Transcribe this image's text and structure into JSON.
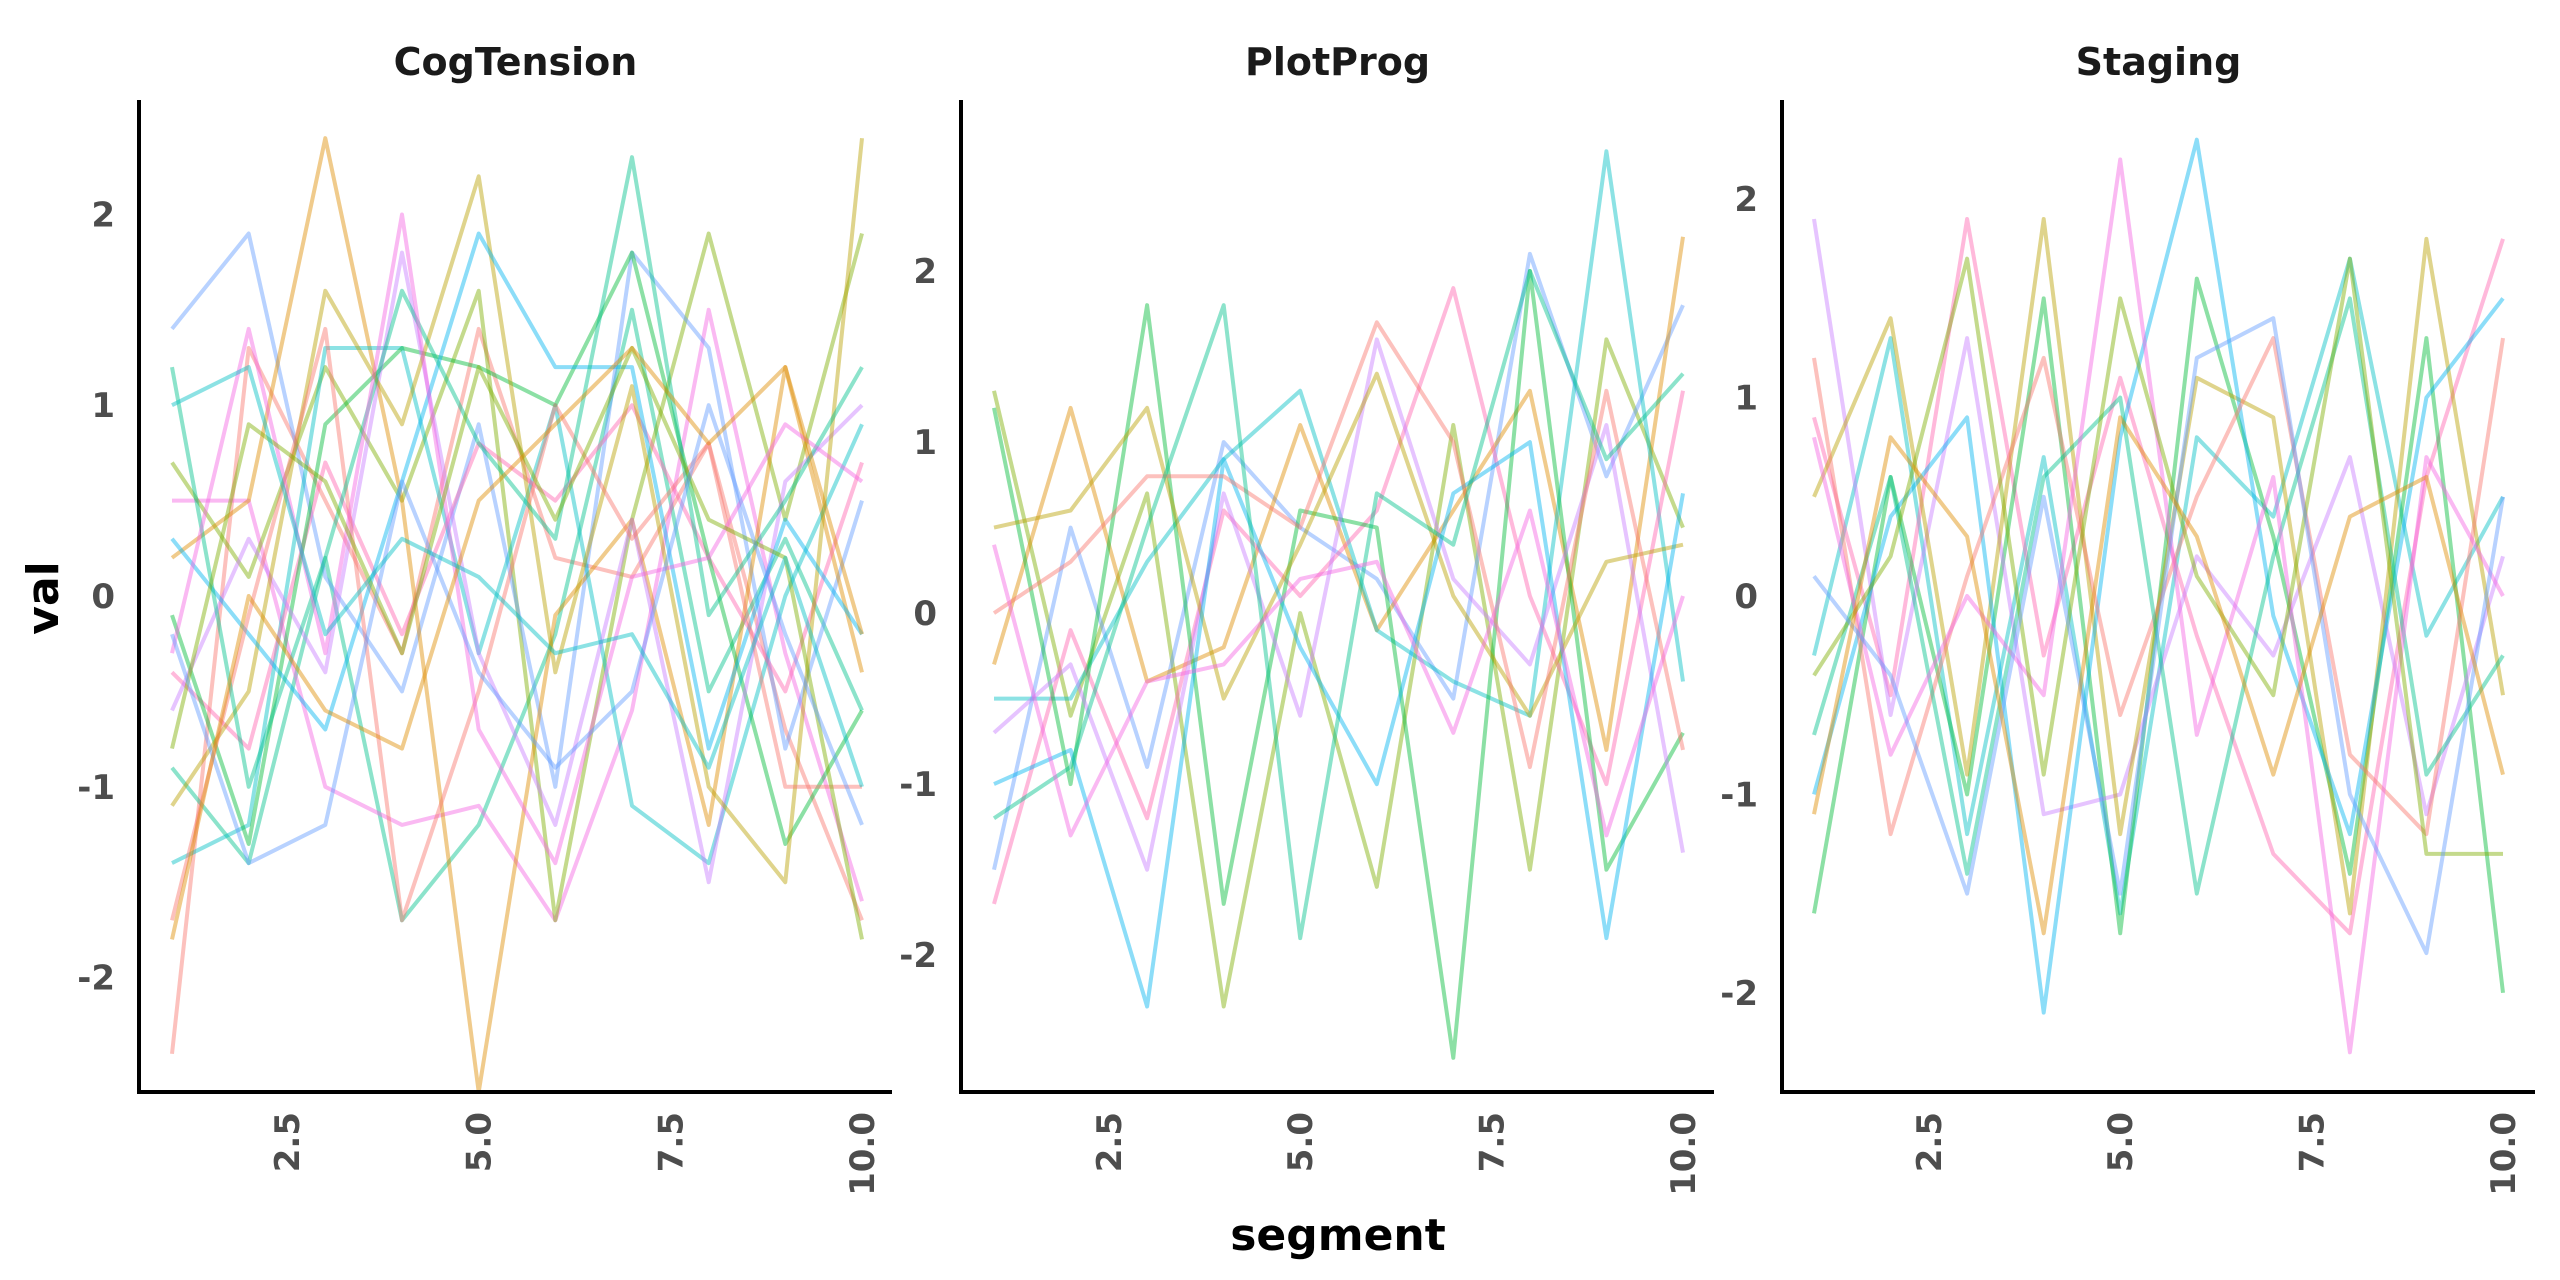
{
  "chart_data": {
    "type": "line",
    "xlabel": "segment",
    "ylabel": "val",
    "x": [
      1,
      2,
      3,
      4,
      5,
      6,
      7,
      8,
      9,
      10
    ],
    "x_ticks": [
      "2.5",
      "5.0",
      "7.5",
      "10.0"
    ],
    "grid": false,
    "legend": "none",
    "colors": [
      "#F8766D",
      "#DE8C00",
      "#B79F00",
      "#7CAE00",
      "#00BA38",
      "#00C08B",
      "#00BFC4",
      "#00B4F0",
      "#619CFF",
      "#C77CFF",
      "#F564E3",
      "#FF64B0"
    ],
    "facets": [
      {
        "title": "CogTension",
        "ylim": [
          -2.6,
          2.6
        ],
        "y_ticks": [
          "-2",
          "-1",
          "0",
          "1",
          "2"
        ],
        "series": [
          {
            "values": [
              -2.4,
              1.3,
              0.5,
              -0.3,
              1.4,
              0.2,
              0.1,
              0.8,
              -0.7,
              -1.7
            ]
          },
          {
            "values": [
              -0.9,
              -1.4,
              0.2,
              -1.7,
              -1.2,
              -0.2,
              1.5,
              -0.5,
              0.3,
              -0.6
            ]
          },
          {
            "values": [
              0.5,
              0.5,
              -1.0,
              -1.2,
              -1.1,
              -1.7,
              -0.6,
              1.5,
              -0.3,
              -1.6
            ]
          },
          {
            "values": [
              0.7,
              0.1,
              1.2,
              0.5,
              1.6,
              -1.7,
              0.4,
              1.9,
              0.4,
              1.9
            ]
          },
          {
            "values": [
              1.4,
              1.9,
              0.1,
              -0.5,
              0.9,
              -1.0,
              1.8,
              1.3,
              -0.8,
              0.5
            ]
          },
          {
            "values": [
              0.2,
              0.5,
              2.4,
              0.5,
              -2.6,
              -0.1,
              0.4,
              -1.2,
              1.2,
              -0.4
            ]
          },
          {
            "values": [
              -1.4,
              -1.2,
              1.3,
              1.3,
              -0.3,
              1.0,
              -1.1,
              -1.4,
              0.0,
              0.9
            ]
          },
          {
            "values": [
              -0.4,
              -0.8,
              0.7,
              -0.2,
              0.8,
              0.5,
              1.0,
              0.2,
              -0.5,
              0.7
            ]
          },
          {
            "values": [
              -0.1,
              -1.3,
              0.9,
              1.3,
              1.2,
              1.0,
              1.8,
              0.2,
              -1.3,
              -0.6
            ]
          },
          {
            "values": [
              -0.6,
              0.3,
              -0.4,
              1.8,
              -0.3,
              -1.2,
              0.4,
              -1.5,
              0.6,
              1.0
            ]
          },
          {
            "values": [
              -1.1,
              -0.5,
              1.6,
              0.9,
              2.2,
              -0.4,
              1.1,
              -1.0,
              -1.5,
              2.4
            ]
          },
          {
            "values": [
              0.3,
              -0.2,
              -0.7,
              0.6,
              1.9,
              1.2,
              1.2,
              -0.8,
              0.4,
              -0.2
            ]
          },
          {
            "values": [
              -1.7,
              -0.1,
              1.4,
              -1.7,
              -0.5,
              1.0,
              0.3,
              0.8,
              -1.0,
              -1.0
            ]
          },
          {
            "values": [
              1.2,
              -1.0,
              0.2,
              1.6,
              0.8,
              0.3,
              2.3,
              -0.1,
              0.5,
              1.2
            ]
          },
          {
            "values": [
              -0.3,
              1.4,
              -0.3,
              2.0,
              -0.7,
              -1.4,
              0.1,
              0.2,
              0.9,
              0.6
            ]
          },
          {
            "values": [
              -0.8,
              0.9,
              0.6,
              -0.3,
              1.2,
              0.4,
              1.3,
              0.4,
              0.2,
              -1.8
            ]
          },
          {
            "values": [
              -0.2,
              -1.4,
              -1.2,
              0.6,
              -0.4,
              -0.9,
              -0.5,
              1.0,
              -0.2,
              -1.2
            ]
          },
          {
            "values": [
              -1.8,
              0.0,
              -0.6,
              -0.8,
              0.5,
              0.9,
              1.3,
              0.8,
              1.2,
              -0.2
            ]
          },
          {
            "values": [
              1.0,
              1.2,
              -0.2,
              0.3,
              0.1,
              -0.3,
              -0.2,
              -0.9,
              0.2,
              -1.0
            ]
          }
        ]
      },
      {
        "title": "PlotProg",
        "ylim": [
          -2.8,
          3.0
        ],
        "y_ticks": [
          "-2",
          "-1",
          "0",
          "1",
          "2"
        ],
        "series": [
          {
            "values": [
              1.3,
              -0.6,
              0.7,
              -2.3,
              0.0,
              -1.6,
              1.1,
              -1.5,
              1.6,
              0.5
            ]
          },
          {
            "values": [
              -1.5,
              0.5,
              -0.9,
              1.0,
              0.5,
              0.2,
              -0.5,
              2.1,
              0.8,
              1.8
            ]
          },
          {
            "values": [
              -0.3,
              1.2,
              -0.4,
              -0.2,
              1.1,
              -0.1,
              0.6,
              1.3,
              -0.8,
              2.2
            ]
          },
          {
            "values": [
              -0.5,
              -0.5,
              0.3,
              0.9,
              1.3,
              -0.1,
              -0.4,
              -0.6,
              2.7,
              -0.4
            ]
          },
          {
            "values": [
              -1.7,
              -0.1,
              -1.2,
              0.6,
              0.1,
              0.6,
              1.9,
              0.1,
              -1.0,
              1.3
            ]
          },
          {
            "values": [
              1.2,
              -1.0,
              1.8,
              -1.7,
              0.6,
              0.5,
              -2.6,
              2.0,
              -1.5,
              -0.7
            ]
          },
          {
            "values": [
              -0.7,
              -0.3,
              -1.5,
              0.7,
              -0.6,
              1.6,
              0.2,
              -0.3,
              1.1,
              -1.4
            ]
          },
          {
            "values": [
              0.5,
              0.6,
              1.2,
              -0.5,
              0.4,
              1.4,
              0.1,
              -0.6,
              0.3,
              0.4
            ]
          },
          {
            "values": [
              -1.0,
              -0.8,
              -2.3,
              0.9,
              -0.2,
              -1.0,
              0.7,
              1.0,
              -1.9,
              0.7
            ]
          },
          {
            "values": [
              0.0,
              0.3,
              0.8,
              0.8,
              0.5,
              1.7,
              1.0,
              -0.9,
              1.3,
              -0.8
            ]
          },
          {
            "values": [
              -1.2,
              -0.9,
              0.5,
              1.8,
              -1.9,
              0.7,
              0.4,
              2.0,
              0.9,
              1.4
            ]
          },
          {
            "values": [
              0.4,
              -1.3,
              -0.4,
              -0.3,
              0.2,
              0.3,
              -0.7,
              0.6,
              -1.3,
              0.1
            ]
          }
        ]
      },
      {
        "title": "Staging",
        "ylim": [
          -2.5,
          2.5
        ],
        "y_ticks": [
          "-2",
          "-1",
          "0",
          "1",
          "2"
        ],
        "series": [
          {
            "values": [
              -0.3,
              1.3,
              -1.2,
              0.7,
              -1.6,
              0.8,
              0.4,
              1.7,
              -0.2,
              0.5
            ]
          },
          {
            "values": [
              0.9,
              -0.5,
              1.9,
              -0.3,
              1.1,
              -0.2,
              -1.3,
              -1.7,
              0.6,
              1.8
            ]
          },
          {
            "values": [
              -1.6,
              0.6,
              -1.0,
              1.5,
              -1.7,
              1.6,
              0.3,
              -1.4,
              1.3,
              -2.0
            ]
          },
          {
            "values": [
              1.9,
              -0.6,
              1.3,
              -1.1,
              -1.0,
              0.2,
              -0.3,
              0.7,
              -1.1,
              0.2
            ]
          },
          {
            "values": [
              0.5,
              1.4,
              -0.9,
              1.9,
              -1.2,
              1.1,
              0.9,
              -1.6,
              1.8,
              -0.5
            ]
          },
          {
            "values": [
              -1.0,
              0.4,
              0.9,
              -2.1,
              0.8,
              2.3,
              -0.1,
              -1.2,
              1.0,
              1.5
            ]
          },
          {
            "values": [
              1.2,
              -1.2,
              0.1,
              1.2,
              -0.6,
              0.5,
              1.3,
              -0.8,
              -1.2,
              1.3
            ]
          },
          {
            "values": [
              -0.7,
              0.6,
              -1.4,
              0.6,
              1.0,
              -1.5,
              0.2,
              1.5,
              -0.9,
              -0.3
            ]
          },
          {
            "values": [
              0.8,
              -0.8,
              0.0,
              -0.5,
              2.2,
              -0.7,
              0.6,
              -2.3,
              0.7,
              0.0
            ]
          },
          {
            "values": [
              -0.4,
              0.2,
              1.7,
              -0.9,
              1.5,
              0.1,
              -0.5,
              1.7,
              -1.3,
              -1.3
            ]
          },
          {
            "values": [
              0.1,
              -0.4,
              -1.5,
              0.5,
              -1.5,
              1.2,
              1.4,
              -1.0,
              -1.8,
              0.5
            ]
          },
          {
            "values": [
              -1.1,
              0.8,
              0.3,
              -1.7,
              0.9,
              0.3,
              -0.9,
              0.4,
              0.6,
              -0.9
            ]
          }
        ]
      }
    ]
  }
}
